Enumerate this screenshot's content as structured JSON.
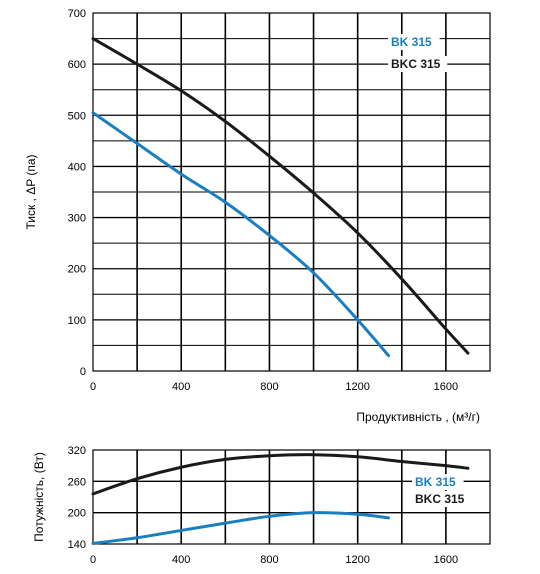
{
  "chart_data": [
    {
      "type": "line",
      "title": "",
      "xlabel": "Продуктивність , (м³/г)",
      "ylabel": "Тиск , ΔP (па)",
      "xlim": [
        0,
        1800
      ],
      "ylim": [
        0,
        700
      ],
      "x_ticks": [
        "0",
        "400",
        "800",
        "1200",
        "1600"
      ],
      "y_ticks": [
        "0",
        "100",
        "200",
        "300",
        "400",
        "500",
        "600",
        "700"
      ],
      "grid": true,
      "legend_position": "top-right",
      "series": [
        {
          "name": "BK 315",
          "color": "#1a7fc1",
          "points": [
            [
              0,
              505
            ],
            [
              200,
              445
            ],
            [
              400,
              385
            ],
            [
              600,
              330
            ],
            [
              800,
              265
            ],
            [
              1000,
              192
            ],
            [
              1200,
              100
            ],
            [
              1340,
              30
            ]
          ]
        },
        {
          "name": "BKC 315",
          "color": "#1a1a1a",
          "points": [
            [
              0,
              650
            ],
            [
              200,
              600
            ],
            [
              400,
              548
            ],
            [
              600,
              488
            ],
            [
              800,
              420
            ],
            [
              1000,
              348
            ],
            [
              1200,
              270
            ],
            [
              1400,
              180
            ],
            [
              1600,
              82
            ],
            [
              1700,
              35
            ]
          ]
        }
      ]
    },
    {
      "type": "line",
      "title": "",
      "xlabel": "",
      "ylabel": "Потужність, (Вт)",
      "xlim": [
        0,
        1800
      ],
      "ylim": [
        140,
        320
      ],
      "x_ticks": [
        "0",
        "400",
        "800",
        "1200",
        "1600"
      ],
      "y_ticks": [
        "140",
        "200",
        "260",
        "320"
      ],
      "grid": true,
      "legend_position": "right",
      "series": [
        {
          "name": "BK 315",
          "color": "#1a7fc1",
          "points": [
            [
              0,
              141
            ],
            [
              200,
              152
            ],
            [
              400,
              166
            ],
            [
              600,
              180
            ],
            [
              800,
              193
            ],
            [
              1000,
              200
            ],
            [
              1200,
              197
            ],
            [
              1340,
              190
            ]
          ]
        },
        {
          "name": "BKC 315",
          "color": "#1a1a1a",
          "points": [
            [
              0,
              236
            ],
            [
              200,
              265
            ],
            [
              400,
              287
            ],
            [
              600,
              302
            ],
            [
              800,
              309
            ],
            [
              1000,
              311
            ],
            [
              1200,
              307
            ],
            [
              1400,
              298
            ],
            [
              1600,
              290
            ],
            [
              1700,
              285
            ]
          ]
        }
      ]
    }
  ]
}
